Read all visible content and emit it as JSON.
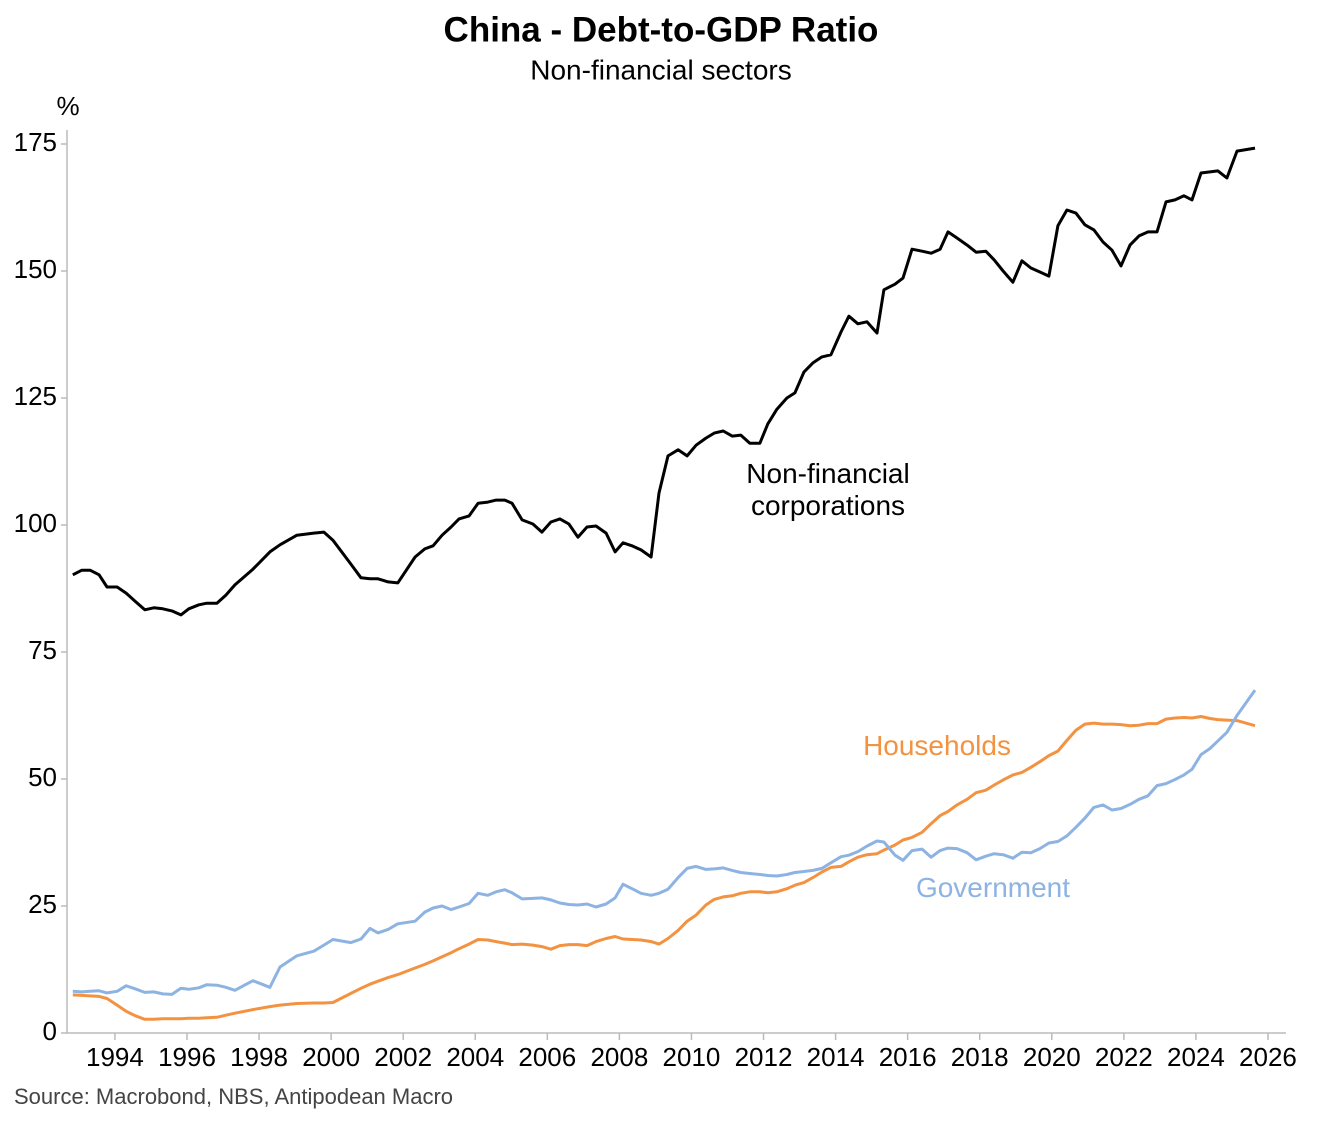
{
  "chart_data": {
    "type": "line",
    "title": "China - Debt-to-GDP Ratio",
    "subtitle": "Non-financial sectors",
    "y_label": "%",
    "source": "Source: Macrobond, NBS, Antipodean Macro",
    "xlim": [
      1992.67,
      2026.5
    ],
    "xticks": [
      1994,
      1996,
      1998,
      2000,
      2002,
      2004,
      2006,
      2008,
      2010,
      2012,
      2014,
      2016,
      2018,
      2020,
      2022,
      2024,
      2026
    ],
    "ylim": [
      0,
      175
    ],
    "yticks": [
      0,
      25,
      50,
      75,
      100,
      125,
      150,
      175
    ],
    "grid": false,
    "x": [
      1992.83,
      1993.08,
      1993.31,
      1993.56,
      1993.78,
      1994.06,
      1994.31,
      1994.56,
      1994.83,
      1995.08,
      1995.33,
      1995.58,
      1995.83,
      1996.05,
      1996.33,
      1996.55,
      1996.83,
      1997.08,
      1997.33,
      1997.83,
      1998.3,
      1998.58,
      1999.05,
      1999.52,
      1999.8,
      2000.05,
      2000.55,
      2000.83,
      2001.08,
      2001.3,
      2001.58,
      2001.85,
      2002.33,
      2002.6,
      2002.83,
      2003.08,
      2003.33,
      2003.55,
      2003.83,
      2004.08,
      2004.35,
      2004.58,
      2004.82,
      2005.02,
      2005.3,
      2005.6,
      2005.85,
      2006.1,
      2006.35,
      2006.6,
      2006.85,
      2007.1,
      2007.35,
      2007.63,
      2007.88,
      2008.1,
      2008.35,
      2008.6,
      2008.88,
      2009.1,
      2009.35,
      2009.63,
      2009.88,
      2010.13,
      2010.4,
      2010.63,
      2010.88,
      2011.13,
      2011.37,
      2011.62,
      2011.9,
      2012.12,
      2012.37,
      2012.65,
      2012.87,
      2013.12,
      2013.37,
      2013.62,
      2013.87,
      2014.15,
      2014.37,
      2014.62,
      2014.87,
      2015.15,
      2015.34,
      2015.65,
      2015.87,
      2016.12,
      2016.4,
      2016.65,
      2016.9,
      2017.12,
      2017.37,
      2017.65,
      2017.9,
      2018.17,
      2018.4,
      2018.65,
      2018.92,
      2019.17,
      2019.42,
      2019.67,
      2019.92,
      2020.17,
      2020.42,
      2020.67,
      2020.92,
      2021.17,
      2021.42,
      2021.67,
      2021.92,
      2022.17,
      2022.42,
      2022.67,
      2022.92,
      2023.17,
      2023.42,
      2023.67,
      2023.89,
      2024.14,
      2024.39,
      2024.61,
      2024.86,
      2025.14,
      2025.64
    ],
    "series": [
      {
        "name": "Non-financial corporations",
        "color": "#000000",
        "values": [
          90.2,
          91.1,
          91.1,
          90.2,
          87.8,
          87.8,
          86.6,
          85.0,
          83.3,
          83.7,
          83.5,
          83.1,
          82.3,
          83.5,
          84.3,
          84.6,
          84.6,
          86.2,
          88.2,
          91.3,
          94.7,
          96.1,
          98.0,
          98.4,
          98.6,
          97.0,
          92.3,
          89.6,
          89.4,
          89.4,
          88.8,
          88.6,
          93.7,
          95.3,
          95.9,
          98.0,
          99.6,
          101.2,
          101.8,
          104.3,
          104.5,
          104.9,
          104.9,
          104.3,
          101.0,
          100.2,
          98.6,
          100.6,
          101.2,
          100.2,
          97.6,
          99.6,
          99.8,
          98.4,
          94.7,
          96.5,
          95.9,
          95.1,
          93.7,
          106.3,
          113.6,
          114.8,
          113.6,
          115.7,
          117.1,
          118.1,
          118.5,
          117.5,
          117.7,
          116.1,
          116.1,
          119.9,
          122.8,
          125.0,
          126.0,
          130.1,
          131.9,
          133.1,
          133.5,
          138.0,
          141.1,
          139.6,
          140.0,
          137.8,
          146.3,
          147.4,
          148.6,
          154.3,
          153.9,
          153.5,
          154.3,
          157.7,
          156.5,
          155.1,
          153.7,
          153.9,
          152.2,
          150.0,
          147.8,
          152.0,
          150.6,
          149.8,
          149.0,
          158.9,
          162.0,
          161.4,
          159.1,
          158.1,
          155.7,
          154.1,
          151.0,
          155.1,
          156.9,
          157.7,
          157.7,
          163.6,
          164.0,
          164.8,
          164.0,
          169.3,
          169.5,
          169.7,
          168.3,
          173.6,
          174.2
        ]
      },
      {
        "name": "Households",
        "color": "#f39240",
        "values": [
          7.5,
          7.4,
          7.3,
          7.2,
          6.8,
          5.5,
          4.3,
          3.4,
          2.7,
          2.7,
          2.8,
          2.8,
          2.8,
          2.9,
          2.9,
          3.0,
          3.1,
          3.5,
          3.9,
          4.6,
          5.2,
          5.5,
          5.8,
          5.9,
          5.9,
          6.0,
          7.8,
          8.8,
          9.6,
          10.2,
          10.9,
          11.5,
          12.8,
          13.5,
          14.2,
          15.0,
          15.8,
          16.6,
          17.5,
          18.4,
          18.3,
          18.0,
          17.7,
          17.4,
          17.5,
          17.3,
          17.0,
          16.5,
          17.2,
          17.4,
          17.4,
          17.2,
          18.0,
          18.6,
          19.0,
          18.5,
          18.4,
          18.3,
          18.0,
          17.5,
          18.6,
          20.2,
          22.0,
          23.2,
          25.2,
          26.3,
          26.8,
          27.0,
          27.5,
          27.8,
          27.8,
          27.6,
          27.8,
          28.4,
          29.1,
          29.6,
          30.6,
          31.7,
          32.6,
          32.8,
          33.7,
          34.6,
          35.1,
          35.3,
          36.0,
          37.0,
          38.0,
          38.5,
          39.5,
          41.2,
          42.8,
          43.6,
          44.9,
          46.0,
          47.3,
          47.8,
          48.8,
          49.8,
          50.8,
          51.3,
          52.3,
          53.4,
          54.6,
          55.5,
          57.6,
          59.6,
          60.8,
          61.0,
          60.8,
          60.8,
          60.7,
          60.5,
          60.6,
          60.9,
          60.9,
          61.8,
          62.0,
          62.1,
          62.0,
          62.3,
          61.9,
          61.7,
          61.6,
          61.5,
          60.5
        ]
      },
      {
        "name": "Government",
        "color": "#8db3e2",
        "values": [
          8.2,
          8.1,
          8.2,
          8.3,
          7.9,
          8.2,
          9.3,
          8.7,
          8.0,
          8.1,
          7.7,
          7.6,
          8.8,
          8.6,
          8.9,
          9.5,
          9.4,
          9.0,
          8.4,
          10.3,
          9.0,
          13.0,
          15.2,
          16.1,
          17.3,
          18.4,
          17.8,
          18.5,
          20.6,
          19.7,
          20.4,
          21.5,
          22.0,
          23.8,
          24.6,
          25.0,
          24.3,
          24.8,
          25.5,
          27.5,
          27.1,
          27.8,
          28.2,
          27.6,
          26.4,
          26.5,
          26.6,
          26.2,
          25.6,
          25.3,
          25.2,
          25.4,
          24.8,
          25.4,
          26.6,
          29.3,
          28.4,
          27.5,
          27.1,
          27.5,
          28.3,
          30.6,
          32.4,
          32.8,
          32.2,
          32.3,
          32.5,
          32.0,
          31.6,
          31.4,
          31.2,
          31.0,
          30.9,
          31.2,
          31.6,
          31.8,
          32.0,
          32.4,
          33.5,
          34.7,
          35.0,
          35.7,
          36.8,
          37.8,
          37.6,
          35.0,
          34.0,
          35.9,
          36.2,
          34.6,
          35.9,
          36.4,
          36.3,
          35.5,
          34.1,
          34.8,
          35.3,
          35.1,
          34.4,
          35.6,
          35.5,
          36.3,
          37.4,
          37.7,
          38.8,
          40.5,
          42.3,
          44.4,
          44.9,
          43.9,
          44.2,
          45.0,
          46.0,
          46.7,
          48.7,
          49.1,
          49.9,
          50.8,
          51.9,
          54.8,
          56.0,
          57.5,
          59.2,
          62.5,
          67.5
        ]
      }
    ]
  }
}
